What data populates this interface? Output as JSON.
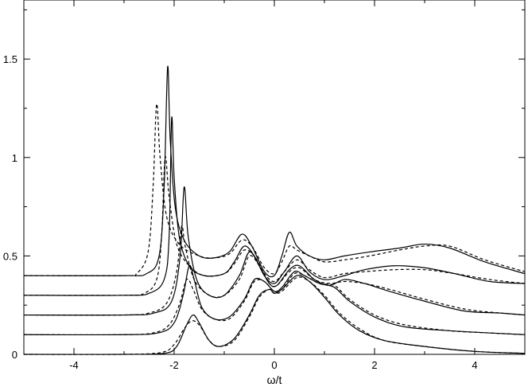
{
  "chart_data": {
    "type": "line",
    "title": "",
    "xlabel": "ω/t",
    "ylabel": "",
    "xlim": [
      -5,
      5
    ],
    "ylim": [
      0,
      1.8
    ],
    "x_ticks": [
      -4,
      -2,
      0,
      2,
      4
    ],
    "y_ticks": [
      0,
      0.5,
      1,
      1.5
    ],
    "x_tick_labels": [
      "-4",
      "-2",
      "0",
      "2",
      "4"
    ],
    "y_tick_labels": [
      "0",
      "0.5",
      "1",
      "1.5"
    ],
    "grid": false,
    "legend": "none",
    "series": [
      {
        "style": "solid",
        "color": "#000000",
        "points": [
          [
            -5,
            0
          ],
          [
            -3,
            0
          ],
          [
            -2.2,
            0.005
          ],
          [
            -1.95,
            0.04
          ],
          [
            -1.75,
            0.15
          ],
          [
            -1.62,
            0.2
          ],
          [
            -1.5,
            0.16
          ],
          [
            -1.3,
            0.07
          ],
          [
            -1.1,
            0.04
          ],
          [
            -0.8,
            0.08
          ],
          [
            -0.5,
            0.2
          ],
          [
            -0.3,
            0.3
          ],
          [
            -0.1,
            0.33
          ],
          [
            0,
            0.31
          ],
          [
            0.15,
            0.33
          ],
          [
            0.45,
            0.4
          ],
          [
            0.7,
            0.37
          ],
          [
            1.0,
            0.29
          ],
          [
            1.3,
            0.2
          ],
          [
            1.7,
            0.12
          ],
          [
            2.2,
            0.07
          ],
          [
            3,
            0.04
          ],
          [
            4,
            0.015
          ],
          [
            5,
            0.005
          ]
        ]
      },
      {
        "style": "dashed",
        "color": "#000000",
        "points": [
          [
            -5,
            0
          ],
          [
            -3,
            0
          ],
          [
            -2.25,
            0.01
          ],
          [
            -2.0,
            0.05
          ],
          [
            -1.8,
            0.13
          ],
          [
            -1.65,
            0.17
          ],
          [
            -1.5,
            0.15
          ],
          [
            -1.3,
            0.07
          ],
          [
            -1.1,
            0.04
          ],
          [
            -0.8,
            0.07
          ],
          [
            -0.5,
            0.19
          ],
          [
            -0.3,
            0.29
          ],
          [
            -0.1,
            0.33
          ],
          [
            0,
            0.31
          ],
          [
            0.15,
            0.32
          ],
          [
            0.45,
            0.39
          ],
          [
            0.7,
            0.37
          ],
          [
            1.0,
            0.3
          ],
          [
            1.3,
            0.21
          ],
          [
            1.7,
            0.13
          ],
          [
            2.2,
            0.07
          ],
          [
            3,
            0.04
          ],
          [
            4,
            0.015
          ],
          [
            5,
            0.005
          ]
        ]
      },
      {
        "style": "solid",
        "color": "#000000",
        "points": [
          [
            -5,
            0.1
          ],
          [
            -3,
            0.1
          ],
          [
            -2.3,
            0.11
          ],
          [
            -2.0,
            0.16
          ],
          [
            -1.82,
            0.3
          ],
          [
            -1.7,
            0.45
          ],
          [
            -1.6,
            0.38
          ],
          [
            -1.45,
            0.24
          ],
          [
            -1.2,
            0.18
          ],
          [
            -0.9,
            0.19
          ],
          [
            -0.6,
            0.28
          ],
          [
            -0.4,
            0.38
          ],
          [
            -0.2,
            0.37
          ],
          [
            0,
            0.32
          ],
          [
            0.15,
            0.34
          ],
          [
            0.4,
            0.42
          ],
          [
            0.6,
            0.4
          ],
          [
            0.9,
            0.36
          ],
          [
            1.2,
            0.34
          ],
          [
            1.5,
            0.27
          ],
          [
            2.0,
            0.19
          ],
          [
            2.6,
            0.14
          ],
          [
            3.5,
            0.12
          ],
          [
            4.2,
            0.11
          ],
          [
            5,
            0.1
          ]
        ]
      },
      {
        "style": "dashed",
        "color": "#000000",
        "points": [
          [
            -5,
            0.1
          ],
          [
            -3,
            0.1
          ],
          [
            -2.4,
            0.11
          ],
          [
            -2.1,
            0.15
          ],
          [
            -1.9,
            0.25
          ],
          [
            -1.75,
            0.38
          ],
          [
            -1.62,
            0.33
          ],
          [
            -1.45,
            0.23
          ],
          [
            -1.2,
            0.18
          ],
          [
            -0.9,
            0.18
          ],
          [
            -0.6,
            0.27
          ],
          [
            -0.4,
            0.37
          ],
          [
            -0.2,
            0.37
          ],
          [
            0,
            0.32
          ],
          [
            0.15,
            0.33
          ],
          [
            0.4,
            0.41
          ],
          [
            0.6,
            0.4
          ],
          [
            0.9,
            0.36
          ],
          [
            1.2,
            0.35
          ],
          [
            1.5,
            0.28
          ],
          [
            2.0,
            0.2
          ],
          [
            2.6,
            0.15
          ],
          [
            3.5,
            0.12
          ],
          [
            4.2,
            0.11
          ],
          [
            5,
            0.1
          ]
        ]
      },
      {
        "style": "solid",
        "color": "#000000",
        "points": [
          [
            -5,
            0.2
          ],
          [
            -3,
            0.2
          ],
          [
            -2.4,
            0.21
          ],
          [
            -2.05,
            0.27
          ],
          [
            -1.88,
            0.5
          ],
          [
            -1.8,
            0.85
          ],
          [
            -1.72,
            0.6
          ],
          [
            -1.55,
            0.38
          ],
          [
            -1.3,
            0.3
          ],
          [
            -1.0,
            0.3
          ],
          [
            -0.7,
            0.4
          ],
          [
            -0.5,
            0.52
          ],
          [
            -0.3,
            0.45
          ],
          [
            -0.1,
            0.36
          ],
          [
            0.05,
            0.35
          ],
          [
            0.3,
            0.43
          ],
          [
            0.5,
            0.45
          ],
          [
            0.8,
            0.38
          ],
          [
            1.1,
            0.35
          ],
          [
            1.4,
            0.38
          ],
          [
            1.8,
            0.36
          ],
          [
            2.3,
            0.32
          ],
          [
            3,
            0.27
          ],
          [
            3.8,
            0.22
          ],
          [
            4.5,
            0.21
          ],
          [
            5,
            0.2
          ]
        ]
      },
      {
        "style": "dashed",
        "color": "#000000",
        "points": [
          [
            -5,
            0.2
          ],
          [
            -3,
            0.2
          ],
          [
            -2.5,
            0.21
          ],
          [
            -2.15,
            0.26
          ],
          [
            -1.95,
            0.42
          ],
          [
            -1.85,
            0.65
          ],
          [
            -1.78,
            0.55
          ],
          [
            -1.6,
            0.38
          ],
          [
            -1.3,
            0.3
          ],
          [
            -1.0,
            0.3
          ],
          [
            -0.7,
            0.38
          ],
          [
            -0.5,
            0.5
          ],
          [
            -0.3,
            0.45
          ],
          [
            -0.1,
            0.36
          ],
          [
            0.05,
            0.35
          ],
          [
            0.3,
            0.42
          ],
          [
            0.5,
            0.44
          ],
          [
            0.8,
            0.38
          ],
          [
            1.1,
            0.36
          ],
          [
            1.4,
            0.37
          ],
          [
            1.8,
            0.36
          ],
          [
            2.3,
            0.33
          ],
          [
            3,
            0.28
          ],
          [
            3.8,
            0.23
          ],
          [
            4.5,
            0.21
          ],
          [
            5,
            0.2
          ]
        ]
      },
      {
        "style": "solid",
        "color": "#000000",
        "points": [
          [
            -5,
            0.3
          ],
          [
            -3,
            0.3
          ],
          [
            -2.5,
            0.31
          ],
          [
            -2.2,
            0.38
          ],
          [
            -2.1,
            0.6
          ],
          [
            -2.05,
            1.2
          ],
          [
            -2.0,
            0.9
          ],
          [
            -1.9,
            0.6
          ],
          [
            -1.7,
            0.45
          ],
          [
            -1.4,
            0.4
          ],
          [
            -1.0,
            0.41
          ],
          [
            -0.8,
            0.47
          ],
          [
            -0.6,
            0.55
          ],
          [
            -0.4,
            0.5
          ],
          [
            -0.2,
            0.4
          ],
          [
            0,
            0.36
          ],
          [
            0.2,
            0.42
          ],
          [
            0.45,
            0.5
          ],
          [
            0.7,
            0.42
          ],
          [
            1.0,
            0.38
          ],
          [
            1.4,
            0.4
          ],
          [
            1.8,
            0.43
          ],
          [
            2.4,
            0.45
          ],
          [
            3,
            0.44
          ],
          [
            3.6,
            0.41
          ],
          [
            4.3,
            0.37
          ],
          [
            5,
            0.36
          ]
        ]
      },
      {
        "style": "dashed",
        "color": "#000000",
        "points": [
          [
            -5,
            0.3
          ],
          [
            -3,
            0.3
          ],
          [
            -2.6,
            0.31
          ],
          [
            -2.35,
            0.38
          ],
          [
            -2.25,
            0.6
          ],
          [
            -2.18,
            1.0
          ],
          [
            -2.1,
            0.8
          ],
          [
            -1.95,
            0.56
          ],
          [
            -1.7,
            0.45
          ],
          [
            -1.4,
            0.4
          ],
          [
            -1.0,
            0.41
          ],
          [
            -0.8,
            0.46
          ],
          [
            -0.6,
            0.53
          ],
          [
            -0.4,
            0.5
          ],
          [
            -0.2,
            0.41
          ],
          [
            0,
            0.37
          ],
          [
            0.2,
            0.42
          ],
          [
            0.45,
            0.48
          ],
          [
            0.7,
            0.43
          ],
          [
            1.0,
            0.39
          ],
          [
            1.4,
            0.41
          ],
          [
            1.8,
            0.42
          ],
          [
            2.4,
            0.43
          ],
          [
            3,
            0.43
          ],
          [
            3.6,
            0.41
          ],
          [
            4.3,
            0.38
          ],
          [
            5,
            0.36
          ]
        ]
      },
      {
        "style": "solid",
        "color": "#000000",
        "points": [
          [
            -5,
            0.4
          ],
          [
            -3,
            0.4
          ],
          [
            -2.55,
            0.41
          ],
          [
            -2.3,
            0.5
          ],
          [
            -2.2,
            0.85
          ],
          [
            -2.13,
            1.46
          ],
          [
            -2.08,
            1.1
          ],
          [
            -1.98,
            0.75
          ],
          [
            -1.8,
            0.58
          ],
          [
            -1.5,
            0.5
          ],
          [
            -1.2,
            0.49
          ],
          [
            -0.9,
            0.52
          ],
          [
            -0.65,
            0.61
          ],
          [
            -0.45,
            0.55
          ],
          [
            -0.2,
            0.42
          ],
          [
            0,
            0.4
          ],
          [
            0.15,
            0.5
          ],
          [
            0.3,
            0.62
          ],
          [
            0.45,
            0.55
          ],
          [
            0.7,
            0.5
          ],
          [
            1.0,
            0.48
          ],
          [
            1.4,
            0.5
          ],
          [
            1.9,
            0.52
          ],
          [
            2.5,
            0.54
          ],
          [
            3,
            0.56
          ],
          [
            3.5,
            0.54
          ],
          [
            4.2,
            0.47
          ],
          [
            5,
            0.41
          ]
        ]
      },
      {
        "style": "dashed",
        "color": "#000000",
        "points": [
          [
            -5,
            0.4
          ],
          [
            -3,
            0.4
          ],
          [
            -2.75,
            0.41
          ],
          [
            -2.52,
            0.52
          ],
          [
            -2.42,
            0.85
          ],
          [
            -2.35,
            1.27
          ],
          [
            -2.28,
            1.0
          ],
          [
            -2.15,
            0.7
          ],
          [
            -1.9,
            0.56
          ],
          [
            -1.5,
            0.5
          ],
          [
            -1.2,
            0.49
          ],
          [
            -0.9,
            0.51
          ],
          [
            -0.65,
            0.58
          ],
          [
            -0.45,
            0.55
          ],
          [
            -0.2,
            0.44
          ],
          [
            0,
            0.41
          ],
          [
            0.15,
            0.47
          ],
          [
            0.3,
            0.55
          ],
          [
            0.45,
            0.53
          ],
          [
            0.7,
            0.5
          ],
          [
            1.0,
            0.47
          ],
          [
            1.4,
            0.48
          ],
          [
            1.9,
            0.5
          ],
          [
            2.5,
            0.53
          ],
          [
            3,
            0.55
          ],
          [
            3.5,
            0.55
          ],
          [
            4.2,
            0.48
          ],
          [
            5,
            0.42
          ]
        ]
      }
    ]
  }
}
